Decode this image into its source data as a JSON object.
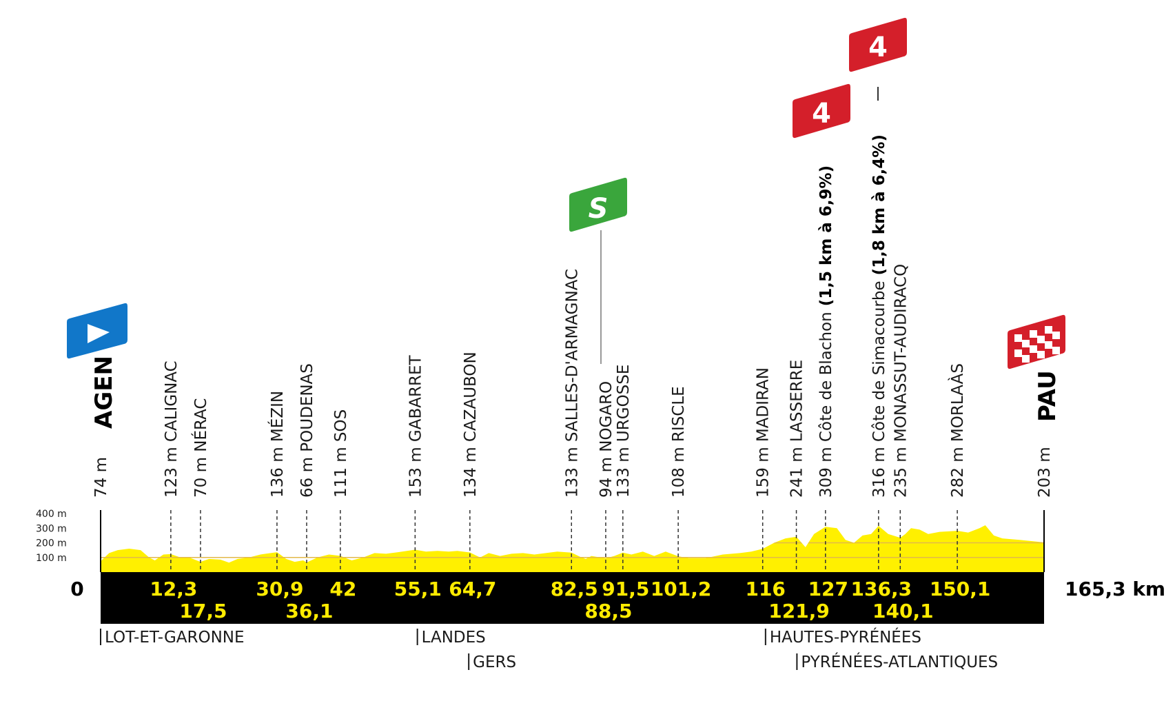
{
  "chart_data": {
    "type": "area",
    "colors": {
      "profile_fill": "#fff000",
      "profile_line": "#e2b84a",
      "distance_band": "#000000",
      "km_labels": "#ffeb00",
      "start_flag": "#1177c9",
      "sprint_flag": "#3aa63c",
      "climb_flag": "#d41f2a",
      "finish_flag": "#d41f2a"
    },
    "axis": {
      "total_km": 165.3,
      "elevation_ticks": [
        "100 m",
        "200 m",
        "300 m",
        "400 m"
      ],
      "start_label": "0",
      "end_label": "165,3 km",
      "ylim": [
        0,
        400
      ]
    },
    "profile": [
      [
        0,
        74
      ],
      [
        1.5,
        130
      ],
      [
        3,
        150
      ],
      [
        5,
        160
      ],
      [
        7,
        150
      ],
      [
        8.5,
        100
      ],
      [
        9.5,
        80
      ],
      [
        11,
        120
      ],
      [
        12.3,
        123
      ],
      [
        14,
        100
      ],
      [
        15.5,
        100
      ],
      [
        17.5,
        70
      ],
      [
        19,
        90
      ],
      [
        21,
        85
      ],
      [
        22.5,
        65
      ],
      [
        24,
        90
      ],
      [
        26,
        100
      ],
      [
        28,
        120
      ],
      [
        30.9,
        136
      ],
      [
        32.5,
        90
      ],
      [
        34,
        70
      ],
      [
        35.5,
        80
      ],
      [
        36.1,
        66
      ],
      [
        38,
        100
      ],
      [
        40,
        120
      ],
      [
        42,
        111
      ],
      [
        44,
        80
      ],
      [
        46,
        100
      ],
      [
        48,
        130
      ],
      [
        50,
        125
      ],
      [
        52,
        135
      ],
      [
        55.1,
        153
      ],
      [
        57,
        140
      ],
      [
        59,
        145
      ],
      [
        61,
        140
      ],
      [
        62.5,
        145
      ],
      [
        64.7,
        134
      ],
      [
        66.5,
        100
      ],
      [
        68,
        130
      ],
      [
        70,
        110
      ],
      [
        72,
        125
      ],
      [
        74,
        130
      ],
      [
        76,
        120
      ],
      [
        78,
        130
      ],
      [
        80,
        140
      ],
      [
        82.5,
        133
      ],
      [
        84,
        105
      ],
      [
        85,
        90
      ],
      [
        86,
        110
      ],
      [
        88.5,
        94
      ],
      [
        90,
        110
      ],
      [
        91.5,
        133
      ],
      [
        93,
        120
      ],
      [
        95,
        140
      ],
      [
        97,
        110
      ],
      [
        99,
        140
      ],
      [
        101.2,
        108
      ],
      [
        103,
        95
      ],
      [
        106,
        95
      ],
      [
        109,
        120
      ],
      [
        112,
        130
      ],
      [
        114,
        140
      ],
      [
        116,
        159
      ],
      [
        118,
        200
      ],
      [
        120,
        230
      ],
      [
        121.9,
        241
      ],
      [
        123.5,
        170
      ],
      [
        125,
        260
      ],
      [
        127,
        309
      ],
      [
        129,
        300
      ],
      [
        130.5,
        220
      ],
      [
        132,
        200
      ],
      [
        133.5,
        250
      ],
      [
        135,
        260
      ],
      [
        136.3,
        316
      ],
      [
        138,
        260
      ],
      [
        140.1,
        235
      ],
      [
        141,
        260
      ],
      [
        142,
        300
      ],
      [
        143.5,
        290
      ],
      [
        145,
        260
      ],
      [
        147,
        275
      ],
      [
        150.1,
        282
      ],
      [
        152,
        270
      ],
      [
        154,
        300
      ],
      [
        155,
        320
      ],
      [
        156.5,
        250
      ],
      [
        158,
        230
      ],
      [
        161,
        220
      ],
      [
        165.3,
        203
      ]
    ],
    "points": [
      {
        "km": "0",
        "alt": "74 m",
        "name": "AGEN",
        "type": "start"
      },
      {
        "km": "12,3",
        "alt": "123 m",
        "name": "CALIGNAC",
        "row": 1
      },
      {
        "km": "17,5",
        "alt": "70 m",
        "name": "NÉRAC",
        "row": 2
      },
      {
        "km": "30,9",
        "alt": "136 m",
        "name": "MÉZIN",
        "row": 1
      },
      {
        "km": "36,1",
        "alt": "66 m",
        "name": "POUDENAS",
        "row": 2
      },
      {
        "km": "42",
        "alt": "111 m",
        "name": "SOS",
        "row": 1
      },
      {
        "km": "55,1",
        "alt": "153 m",
        "name": "GABARRET",
        "row": 1
      },
      {
        "km": "64,7",
        "alt": "134 m",
        "name": "CAZAUBON",
        "row": 1
      },
      {
        "km": "82,5",
        "alt": "133 m",
        "name": "SALLES-D'ARMAGNAC",
        "row": 1
      },
      {
        "km": "88,5",
        "alt": "94 m",
        "name": "NOGARO",
        "row": 2,
        "type": "sprint"
      },
      {
        "km": "91,5",
        "alt": "133 m",
        "name": "URGOSSE",
        "row": 1
      },
      {
        "km": "101,2",
        "alt": "108 m",
        "name": "RISCLE",
        "row": 1
      },
      {
        "km": "116",
        "alt": "159 m",
        "name": "MADIRAN",
        "row": 1
      },
      {
        "km": "121,9",
        "alt": "241 m",
        "name": "LASSERRE",
        "row": 2
      },
      {
        "km": "127",
        "alt": "309 m",
        "name": "Côte de Blachon",
        "climb": "(1,5 km à 6,9%)",
        "row": 1,
        "type": "climb",
        "category": "4"
      },
      {
        "km": "136,3",
        "alt": "316 m",
        "name": "Côte de Simacourbe",
        "climb": "(1,8 km à 6,4%)",
        "row": 1,
        "type": "climb",
        "category": "4"
      },
      {
        "km": "140,1",
        "alt": "235 m",
        "name": "MONASSUT-AUDIRACQ",
        "row": 2
      },
      {
        "km": "150,1",
        "alt": "282 m",
        "name": "MORLAÀS",
        "row": 1
      },
      {
        "km": "165,3",
        "alt": "203 m",
        "name": "PAU",
        "type": "finish"
      }
    ],
    "departments": [
      {
        "name": "LOT-ET-GARONNE",
        "km": 0,
        "row": 1
      },
      {
        "name": "LANDES",
        "km": 55.5,
        "row": 1
      },
      {
        "name": "GERS",
        "km": 64.5,
        "row": 2
      },
      {
        "name": "HAUTES-PYRÉNÉES",
        "km": 116.5,
        "row": 1
      },
      {
        "name": "PYRÉNÉES-ATLANTIQUES",
        "km": 122,
        "row": 2
      }
    ]
  }
}
